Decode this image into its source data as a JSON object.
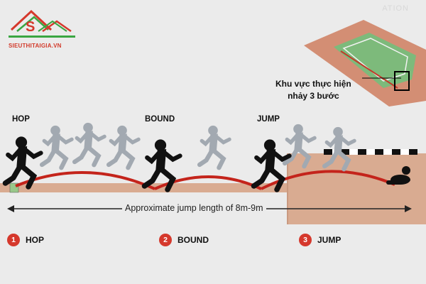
{
  "logo": {
    "brand": "SIEUTHITAIGIA.VN"
  },
  "header_text": "ATION",
  "callout": {
    "line1": "Khu vực thực hiện",
    "line2": "nhảy 3 bước"
  },
  "phase_labels": {
    "hop": "HOP",
    "bound": "BOUND",
    "jump": "JUMP"
  },
  "jump_length": "Approximate jump length of 8m-9m",
  "legend": [
    {
      "number": "1",
      "label": "HOP"
    },
    {
      "number": "2",
      "label": "BOUND"
    },
    {
      "number": "3",
      "label": "JUMP"
    }
  ],
  "colors": {
    "accent_red": "#d5382c",
    "track_tan": "#d9ab91",
    "figure_black": "#111111",
    "ghost_grey": "#a2a9b1"
  }
}
